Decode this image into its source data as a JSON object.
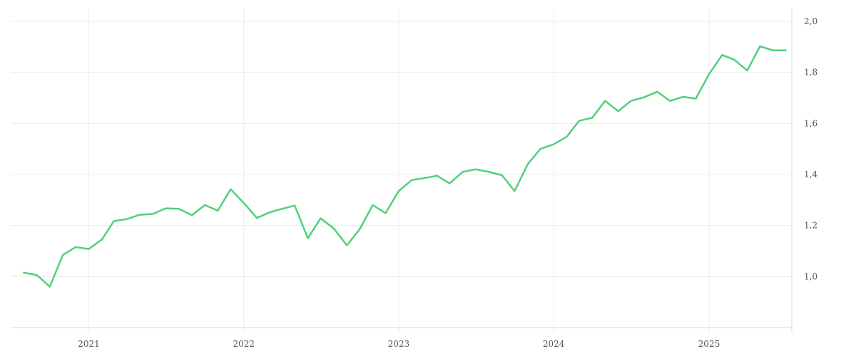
{
  "chart_data": {
    "type": "line",
    "title": "",
    "xlabel": "",
    "ylabel": "",
    "x_ticks": [
      "2021",
      "2022",
      "2023",
      "2024",
      "2025"
    ],
    "y_ticks": [
      "1,0",
      "1,2",
      "1,4",
      "1,6",
      "1,8",
      "2,0"
    ],
    "ylim": [
      0.8,
      2.05
    ],
    "xlim": [
      "2020-07-01",
      "2025-07-15"
    ],
    "grid": true,
    "y_axis_position": "right",
    "colors": {
      "line": "#4fd17a"
    },
    "series": [
      {
        "x": [
          "2020-08",
          "2020-09",
          "2020-10",
          "2020-11",
          "2020-12",
          "2021-01",
          "2021-02",
          "2021-03",
          "2021-04",
          "2021-05",
          "2021-06",
          "2021-07",
          "2021-08",
          "2021-09",
          "2021-10",
          "2021-11",
          "2021-12",
          "2022-01",
          "2022-02",
          "2022-03",
          "2022-04",
          "2022-05",
          "2022-06",
          "2022-07",
          "2022-08",
          "2022-09",
          "2022-10",
          "2022-11",
          "2022-12",
          "2023-01",
          "2023-02",
          "2023-03",
          "2023-04",
          "2023-05",
          "2023-06",
          "2023-07",
          "2023-08",
          "2023-09",
          "2023-10",
          "2023-11",
          "2023-12",
          "2024-01",
          "2024-02",
          "2024-03",
          "2024-04",
          "2024-05",
          "2024-06",
          "2024-07",
          "2024-08",
          "2024-09",
          "2024-10",
          "2024-11",
          "2024-12",
          "2025-01",
          "2025-02",
          "2025-03",
          "2025-04",
          "2025-05",
          "2025-06",
          "2025-07"
        ],
        "values": [
          1.015,
          1.005,
          0.96,
          1.085,
          1.115,
          1.108,
          1.145,
          1.217,
          1.225,
          1.242,
          1.245,
          1.267,
          1.265,
          1.24,
          1.28,
          1.258,
          1.342,
          1.288,
          1.229,
          1.25,
          1.265,
          1.278,
          1.15,
          1.228,
          1.188,
          1.122,
          1.185,
          1.28,
          1.248,
          1.335,
          1.378,
          1.385,
          1.395,
          1.365,
          1.41,
          1.42,
          1.41,
          1.397,
          1.335,
          1.44,
          1.5,
          1.518,
          1.548,
          1.61,
          1.622,
          1.688,
          1.648,
          1.688,
          1.702,
          1.724,
          1.688,
          1.704,
          1.697,
          1.793,
          1.868,
          1.85,
          1.807,
          1.902,
          1.886,
          1.886
        ]
      }
    ]
  }
}
